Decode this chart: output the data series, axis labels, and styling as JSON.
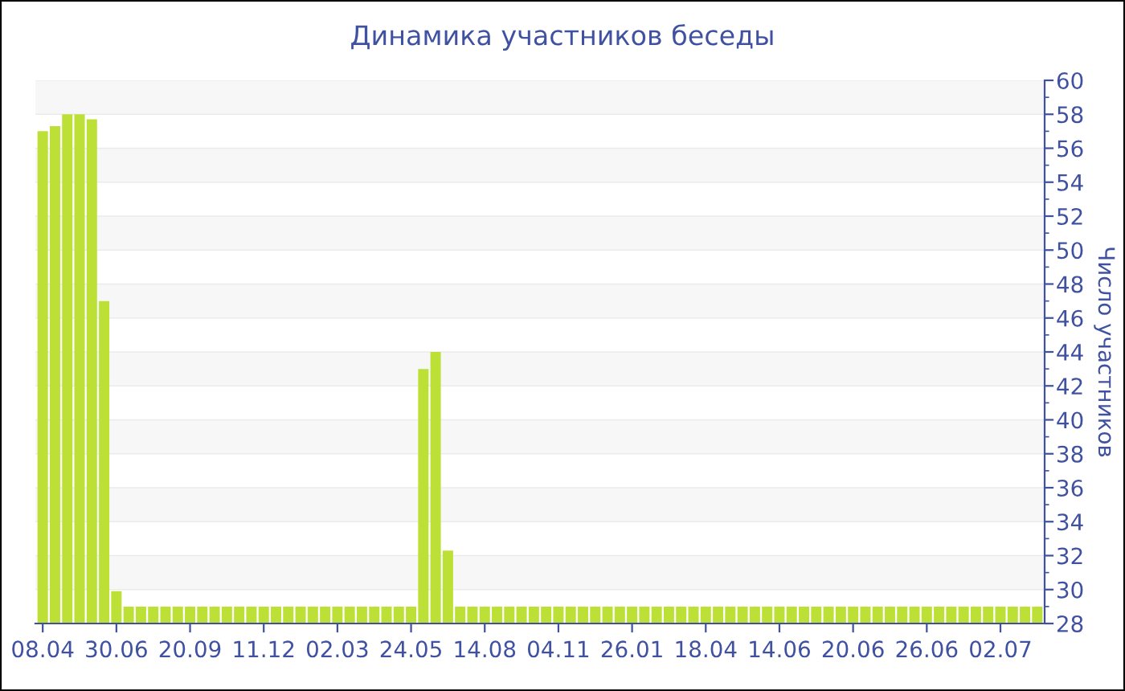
{
  "chart_data": {
    "type": "bar",
    "title": "Динамика участников беседы",
    "ylabel": "Число участников",
    "categories": [
      "08.04",
      null,
      null,
      null,
      null,
      null,
      "30.06",
      null,
      null,
      null,
      null,
      null,
      "20.09",
      null,
      null,
      null,
      null,
      null,
      "11.12",
      null,
      null,
      null,
      null,
      null,
      "02.03",
      null,
      null,
      null,
      null,
      null,
      "24.05",
      null,
      null,
      null,
      null,
      null,
      "14.08",
      null,
      null,
      null,
      null,
      null,
      "04.11",
      null,
      null,
      null,
      null,
      null,
      "26.01",
      null,
      null,
      null,
      null,
      null,
      "18.04",
      null,
      null,
      null,
      null,
      null,
      "14.06",
      null,
      null,
      null,
      null,
      null,
      "20.06",
      null,
      null,
      null,
      null,
      null,
      "26.06",
      null,
      null,
      null,
      null,
      null,
      "02.07",
      null,
      null,
      null
    ],
    "values": [
      57,
      57.3,
      58,
      58,
      57.7,
      47,
      29.9,
      29,
      29,
      29,
      29,
      29,
      29,
      29,
      29,
      29,
      29,
      29,
      29,
      29,
      29,
      29,
      29,
      29,
      29,
      29,
      29,
      29,
      29,
      29,
      29,
      43,
      44,
      32.3,
      29,
      29,
      29,
      29,
      29,
      29,
      29,
      29,
      29,
      29,
      29,
      29,
      29,
      29,
      29,
      29,
      29,
      29,
      29,
      29,
      29,
      29,
      29,
      29,
      29,
      29,
      29,
      29,
      29,
      29,
      29,
      29,
      29,
      29,
      29,
      29,
      29,
      29,
      29,
      29,
      29,
      29,
      29,
      29,
      29,
      29,
      29,
      29
    ],
    "color": "#bde036",
    "ylim": [
      28,
      60
    ],
    "yticks": [
      28,
      30,
      32,
      34,
      36,
      38,
      40,
      42,
      44,
      46,
      48,
      50,
      52,
      54,
      56,
      58,
      60
    ],
    "grid": "y"
  }
}
